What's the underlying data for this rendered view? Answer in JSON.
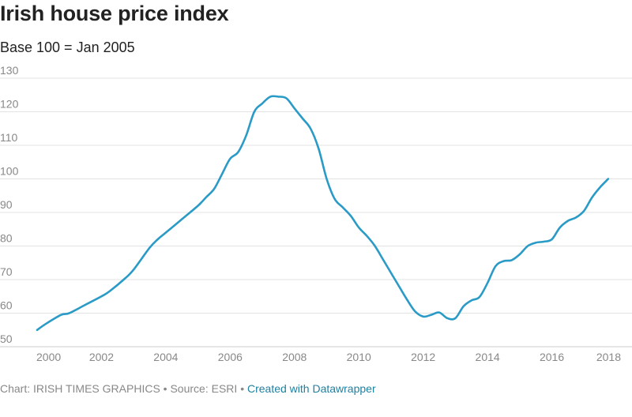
{
  "title": "Irish house price index",
  "subtitle": "Base 100 = Jan 2005",
  "footer": {
    "chart_credit": "Chart: IRISH TIMES GRAPHICS",
    "separator": "•",
    "source": "Source: ESRI",
    "created_with": "Created with Datawrapper"
  },
  "colors": {
    "line": "#2a9ac6",
    "grid": "#e3e3e3",
    "text": "#222222",
    "muted": "#888888",
    "link": "#1d81a2"
  },
  "chart_data": {
    "type": "line",
    "title": "Irish house price index",
    "subtitle": "Base 100 = Jan 2005",
    "xlabel": "",
    "ylabel": "",
    "xlim": [
      2000,
      2018
    ],
    "ylim": [
      50,
      130
    ],
    "x_ticks": [
      2000,
      2002,
      2004,
      2006,
      2008,
      2010,
      2012,
      2014,
      2016,
      2018
    ],
    "y_ticks": [
      50,
      60,
      70,
      80,
      90,
      100,
      110,
      120,
      130
    ],
    "grid": true,
    "series": [
      {
        "name": "Irish house price index",
        "x": [
          2000.0,
          2000.3,
          2000.75,
          2001.0,
          2001.5,
          2002.0,
          2002.25,
          2002.75,
          2003.0,
          2003.5,
          2003.75,
          2004.0,
          2004.5,
          2005.0,
          2005.25,
          2005.5,
          2005.75,
          2006.0,
          2006.25,
          2006.5,
          2006.75,
          2007.0,
          2007.25,
          2007.5,
          2007.75,
          2008.0,
          2008.25,
          2008.5,
          2008.75,
          2009.0,
          2009.25,
          2009.5,
          2009.75,
          2010.0,
          2010.25,
          2010.5,
          2010.75,
          2011.0,
          2011.25,
          2011.5,
          2011.75,
          2012.0,
          2012.25,
          2012.5,
          2012.75,
          2013.0,
          2013.25,
          2013.5,
          2013.75,
          2014.0,
          2014.25,
          2014.5,
          2014.75,
          2015.0,
          2015.25,
          2015.5,
          2015.75,
          2016.0,
          2016.25,
          2016.5,
          2016.75,
          2017.0,
          2017.25,
          2017.5,
          2017.75
        ],
        "values": [
          55,
          57,
          59.5,
          60,
          62.5,
          65,
          66.5,
          70.5,
          73,
          79.5,
          82,
          84,
          88,
          92,
          94.5,
          97,
          101.5,
          106,
          108,
          113,
          120,
          122.5,
          124.5,
          124.5,
          124,
          121,
          118,
          115,
          109,
          100,
          94,
          91.5,
          89,
          85.5,
          83,
          80,
          76,
          72,
          68,
          64,
          60.5,
          59,
          59.5,
          60.2,
          58.5,
          58.5,
          62,
          63.8,
          64.8,
          69,
          74,
          75.5,
          75.8,
          77.5,
          80,
          81,
          81.3,
          82,
          85.5,
          87.5,
          88.5,
          90.5,
          94.5,
          97.5,
          100
        ]
      }
    ]
  }
}
